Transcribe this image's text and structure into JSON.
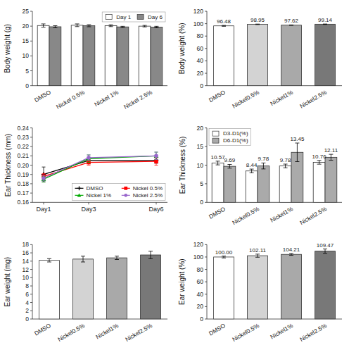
{
  "chart_data": [
    {
      "type": "bar",
      "y_label": "Body weight (g)",
      "categories": [
        "DMSO",
        "Nickel 0.5%",
        "Nickel 1%",
        "Nickel 2.5%"
      ],
      "series": [
        {
          "name": "Day 1",
          "color": "white",
          "values": [
            20.2,
            20.3,
            20.15,
            20.0
          ],
          "errors": [
            0.55,
            0.45,
            0.3,
            0.25
          ]
        },
        {
          "name": "Day 6",
          "color": "#888888",
          "values": [
            19.8,
            20.15,
            19.75,
            19.7
          ],
          "errors": [
            0.35,
            0.35,
            0.2,
            0.25
          ]
        }
      ],
      "ylim": [
        0,
        25
      ],
      "yticks": [
        0,
        5,
        10,
        15,
        20,
        25
      ],
      "legend": "upper right"
    },
    {
      "type": "bar",
      "y_label": "Body weight (%)",
      "categories": [
        "DMSO",
        "Nickel0.5%",
        "Nickel1%",
        "Nickel2.5%"
      ],
      "values": [
        96.48,
        98.95,
        97.62,
        99.14
      ],
      "errors": [
        0.7,
        0.4,
        0.35,
        0.3
      ],
      "colors": [
        "white",
        "#d3d3d3",
        "#a9a9a9",
        "#787878"
      ],
      "data_labels": true,
      "ylim": [
        0,
        120
      ],
      "yticks": [
        0,
        20,
        40,
        60,
        80,
        100,
        120
      ]
    },
    {
      "type": "line",
      "y_label": "Ear Thickness (mm)",
      "x": [
        1,
        3,
        6
      ],
      "xlim": [
        0.5,
        6.5
      ],
      "xticks": [
        {
          "value": 1,
          "label": "Day1"
        },
        {
          "value": 3,
          "label": "Day3"
        },
        {
          "value": 6,
          "label": "Day6"
        }
      ],
      "series": [
        {
          "name": "DMSO",
          "color": "black",
          "marker": "plus",
          "values": [
            0.19,
            0.205,
            0.205
          ],
          "errors": [
            0.008,
            0.003,
            0.003
          ]
        },
        {
          "name": "Nickel 0.5%",
          "color": "red",
          "marker": "square",
          "values": [
            0.188,
            0.203,
            0.204
          ],
          "errors": [
            0.003,
            0.003,
            0.004
          ]
        },
        {
          "name": "Nickel 1%",
          "color": "#00aa00",
          "marker": "triangle",
          "values": [
            0.185,
            0.207,
            0.21
          ],
          "errors": [
            0.003,
            0.004,
            0.004
          ]
        },
        {
          "name": "Nickel 2.5%",
          "color": "#9966cc",
          "marker": "circle",
          "values": [
            0.186,
            0.208,
            0.21
          ],
          "errors": [
            0.003,
            0.003,
            0.004
          ]
        }
      ],
      "ylim": [
        0.16,
        0.24
      ],
      "yticks": [
        0.16,
        0.17,
        0.18,
        0.19,
        {
          "value": 0.2,
          "label": "0.20"
        },
        0.21,
        0.22,
        0.23,
        0.24
      ],
      "legend": "lower right"
    },
    {
      "type": "bar",
      "y_label": "Ear Thickness (%)",
      "categories": [
        "DMSO",
        "Nickel0.5%",
        "Nickel1%",
        "Nickel2.5%"
      ],
      "series": [
        {
          "name": "D3-D1(%)",
          "color": "white",
          "values": [
            10.57,
            8.44,
            9.78,
            10.76
          ],
          "errors": [
            0.5,
            0.5,
            0.5,
            0.5
          ]
        },
        {
          "name": "D6-D1(%)",
          "color": "#aaaaaa",
          "values": [
            9.69,
            9.78,
            13.45,
            12.11
          ],
          "errors": [
            0.5,
            0.8,
            2.5,
            0.8
          ]
        }
      ],
      "data_labels": true,
      "ylim": [
        0,
        20
      ],
      "yticks": [
        0,
        5,
        10,
        15,
        20
      ],
      "legend": "upper left"
    },
    {
      "type": "bar",
      "y_label": "Ear weight (mg)",
      "categories": [
        "DMSO",
        "Nickel0.5%",
        "Nickel1%",
        "Nickel2.5%"
      ],
      "values": [
        14.2,
        14.5,
        14.8,
        15.5
      ],
      "errors": [
        0.4,
        0.7,
        0.4,
        0.9
      ],
      "colors": [
        "white",
        "#d3d3d3",
        "#a9a9a9",
        "#787878"
      ],
      "ylim": [
        0,
        18
      ],
      "yticks": [
        0,
        2,
        4,
        6,
        8,
        10,
        12,
        14,
        16,
        18
      ]
    },
    {
      "type": "bar",
      "y_label": "Ear weight (%)",
      "categories": [
        "DMSO",
        "Nickel0.5%",
        "Nickel1%",
        "Nickel2.5%"
      ],
      "values": [
        100.0,
        102.11,
        104.21,
        109.47
      ],
      "value_labels": [
        "100.00",
        "102.11",
        "104.21",
        "109.47"
      ],
      "errors": [
        1.5,
        2.5,
        1.5,
        3.5
      ],
      "colors": [
        "white",
        "#d3d3d3",
        "#a9a9a9",
        "#787878"
      ],
      "data_labels": true,
      "ylim": [
        0,
        120
      ],
      "yticks": [
        0,
        20,
        40,
        60,
        80,
        100,
        120
      ]
    }
  ]
}
